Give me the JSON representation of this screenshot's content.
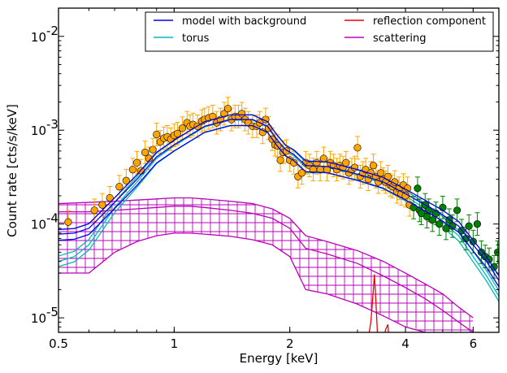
{
  "chart_data": {
    "type": "line",
    "xlabel": "Energy [keV]",
    "ylabel": "Count rate [cts/s/keV]",
    "x_scale": "log",
    "y_scale": "log",
    "xlim": [
      0.5,
      7.0
    ],
    "ylim": [
      7e-06,
      0.02
    ],
    "x_ticks": [
      {
        "value": 0.5,
        "label": "0.5"
      },
      {
        "value": 1,
        "label": "1"
      },
      {
        "value": 2,
        "label": "2"
      },
      {
        "value": 4,
        "label": "4"
      },
      {
        "value": 6,
        "label": "6"
      }
    ],
    "y_ticks": [
      {
        "value": 1e-05,
        "mantissa": "10",
        "exponent": "-5"
      },
      {
        "value": 0.0001,
        "mantissa": "10",
        "exponent": "-4"
      },
      {
        "value": 0.001,
        "mantissa": "10",
        "exponent": "-3"
      },
      {
        "value": 0.01,
        "mantissa": "10",
        "exponent": "-2"
      }
    ],
    "grid": false,
    "legend": {
      "placement": "top-right",
      "columns": 2,
      "entries": [
        {
          "label": "model with background",
          "color": "#0000ee"
        },
        {
          "label": "reflection component",
          "color": "#ee0000"
        },
        {
          "label": "torus",
          "color": "#00bbbb"
        },
        {
          "label": "scattering",
          "color": "#bb00bb"
        }
      ]
    },
    "series": [
      {
        "name": "model with background",
        "color": "#0000ee",
        "x": [
          0.5,
          0.55,
          0.6,
          0.7,
          0.8,
          0.9,
          1.0,
          1.2,
          1.4,
          1.6,
          1.75,
          1.85,
          1.95,
          2.05,
          2.2,
          2.5,
          3.0,
          3.5,
          4.0,
          4.5,
          5.0,
          5.5,
          6.0,
          6.5,
          7.0
        ],
        "y": [
          7.8e-05,
          8e-05,
          9e-05,
          0.00017,
          0.0003,
          0.00052,
          0.0007,
          0.0011,
          0.0013,
          0.0013,
          0.0011,
          0.0008,
          0.00062,
          0.00055,
          0.00042,
          0.00041,
          0.00034,
          0.00028,
          0.00021,
          0.00016,
          0.000125,
          9.5e-05,
          6e-05,
          4e-05,
          2.5e-05
        ]
      },
      {
        "name": "torus",
        "color": "#00bbbb",
        "x": [
          0.5,
          0.55,
          0.6,
          0.7,
          0.8,
          0.9,
          1.0,
          1.2,
          1.4,
          1.6,
          1.75,
          1.85,
          1.95,
          2.05,
          2.2,
          2.5,
          3.0,
          3.5,
          4.0,
          4.5,
          5.0,
          5.5,
          6.0,
          6.5,
          7.0
        ],
        "y": [
          4e-05,
          4.5e-05,
          6e-05,
          0.00015,
          0.00028,
          0.0005,
          0.00068,
          0.00108,
          0.00128,
          0.00128,
          0.00108,
          0.00078,
          0.0006,
          0.00053,
          0.0004,
          0.0004,
          0.00033,
          0.00027,
          0.0002,
          0.000145,
          0.000105,
          7.5e-05,
          4.5e-05,
          2.8e-05,
          1.7e-05
        ]
      },
      {
        "name": "scattering",
        "color": "#bb00bb",
        "x": [
          0.5,
          0.6,
          0.7,
          0.8,
          0.9,
          1.0,
          1.1,
          1.2,
          1.4,
          1.6,
          1.8,
          2.0,
          2.2,
          2.5,
          3.0,
          3.5,
          4.0,
          4.5,
          5.0,
          5.5,
          6.0
        ],
        "y": [
          0.000135,
          0.000135,
          0.00014,
          0.000145,
          0.00015,
          0.000155,
          0.000155,
          0.00015,
          0.00014,
          0.00013,
          0.000115,
          9e-05,
          5.5e-05,
          4.8e-05,
          3.8e-05,
          2.8e-05,
          2.1e-05,
          1.6e-05,
          1.2e-05,
          9e-06,
          7e-06
        ],
        "upper": [
          0.000165,
          0.00017,
          0.000175,
          0.00018,
          0.000185,
          0.00019,
          0.00019,
          0.000185,
          0.000175,
          0.000165,
          0.000145,
          0.000115,
          7.5e-05,
          6.5e-05,
          5.2e-05,
          4e-05,
          3e-05,
          2.3e-05,
          1.8e-05,
          1.3e-05,
          1e-05
        ],
        "lower": [
          3e-05,
          3e-05,
          5e-05,
          6.5e-05,
          7.5e-05,
          8e-05,
          8e-05,
          7.8e-05,
          7.4e-05,
          6.8e-05,
          6e-05,
          4.5e-05,
          2e-05,
          1.8e-05,
          1.4e-05,
          1.05e-05,
          8e-06,
          7e-06,
          6e-06,
          5e-06,
          4.5e-06
        ]
      },
      {
        "name": "reflection component",
        "color": "#ee0000",
        "x": [
          3.1,
          3.2,
          3.25,
          3.3,
          3.32,
          3.35,
          3.38,
          3.42,
          3.5,
          3.55,
          3.6,
          3.62,
          3.65
        ],
        "y": [
          3e-06,
          6e-06,
          9e-06,
          2e-05,
          2.9e-05,
          1.5e-05,
          7e-06,
          5e-06,
          5.5e-06,
          7.5e-06,
          8.5e-06,
          6e-06,
          4e-06
        ]
      }
    ],
    "data_points": [
      {
        "name": "orange data",
        "color": "#ffa500",
        "x": [
          0.53,
          0.62,
          0.65,
          0.68,
          0.72,
          0.75,
          0.78,
          0.8,
          0.82,
          0.84,
          0.86,
          0.88,
          0.9,
          0.92,
          0.94,
          0.96,
          0.98,
          1.0,
          1.02,
          1.05,
          1.08,
          1.1,
          1.12,
          1.15,
          1.18,
          1.2,
          1.23,
          1.26,
          1.29,
          1.32,
          1.35,
          1.38,
          1.41,
          1.44,
          1.47,
          1.5,
          1.53,
          1.56,
          1.6,
          1.64,
          1.67,
          1.7,
          1.73,
          1.76,
          1.8,
          1.83,
          1.86,
          1.89,
          1.92,
          1.96,
          2.0,
          2.05,
          2.1,
          2.15,
          2.2,
          2.25,
          2.3,
          2.35,
          2.4,
          2.45,
          2.5,
          2.55,
          2.6,
          2.65,
          2.7,
          2.75,
          2.8,
          2.85,
          2.9,
          2.95,
          3.0,
          3.05,
          3.1,
          3.15,
          3.2,
          3.25,
          3.3,
          3.35,
          3.4,
          3.45,
          3.5,
          3.55,
          3.6,
          3.65,
          3.7,
          3.75,
          3.8,
          3.85,
          3.9,
          3.95,
          4.0,
          4.05,
          4.1
        ],
        "y": [
          0.000105,
          0.00014,
          0.00016,
          0.00019,
          0.00025,
          0.00029,
          0.00038,
          0.00045,
          0.00037,
          0.00058,
          0.0005,
          0.00062,
          0.0009,
          0.00075,
          0.00082,
          0.00085,
          0.0008,
          0.00088,
          0.00092,
          0.00105,
          0.0012,
          0.0011,
          0.00115,
          0.0011,
          0.00125,
          0.0013,
          0.00135,
          0.0014,
          0.0012,
          0.0013,
          0.0015,
          0.0017,
          0.0013,
          0.0014,
          0.0014,
          0.0015,
          0.0013,
          0.0012,
          0.0011,
          0.0011,
          0.0012,
          0.00095,
          0.0013,
          0.00105,
          0.0008,
          0.0007,
          0.00068,
          0.00048,
          0.00058,
          0.0006,
          0.00048,
          0.00045,
          0.00032,
          0.00035,
          0.00045,
          0.00042,
          0.00038,
          0.00045,
          0.00038,
          0.0005,
          0.00038,
          0.00045,
          0.00042,
          0.00038,
          0.00042,
          0.0004,
          0.00045,
          0.00035,
          0.00038,
          0.0004,
          0.00065,
          0.00032,
          0.00035,
          0.00038,
          0.0003,
          0.00035,
          0.00042,
          0.00032,
          0.00028,
          0.00035,
          0.0003,
          0.00028,
          0.00032,
          0.00026,
          0.00025,
          0.00028,
          0.00022,
          0.00024,
          0.00021,
          0.00026,
          0.0002,
          0.00024,
          0.00016
        ]
      },
      {
        "name": "green data",
        "color": "#008000",
        "x": [
          4.2,
          4.3,
          4.35,
          4.4,
          4.5,
          4.55,
          4.6,
          4.7,
          4.8,
          4.9,
          5.0,
          5.1,
          5.2,
          5.3,
          5.45,
          5.6,
          5.75,
          5.85,
          6.0,
          6.15,
          6.3,
          6.45,
          6.6,
          6.8,
          6.95
        ],
        "y": [
          0.00015,
          0.00024,
          0.00014,
          0.00013,
          0.00016,
          0.00012,
          0.00014,
          0.00011,
          0.00013,
          0.0001,
          0.00015,
          9e-05,
          0.00011,
          9.5e-05,
          0.00014,
          8.5e-05,
          7e-05,
          9.5e-05,
          6.5e-05,
          0.0001,
          5e-05,
          4.5e-05,
          4.2e-05,
          3.5e-05,
          5e-05
        ]
      }
    ]
  }
}
